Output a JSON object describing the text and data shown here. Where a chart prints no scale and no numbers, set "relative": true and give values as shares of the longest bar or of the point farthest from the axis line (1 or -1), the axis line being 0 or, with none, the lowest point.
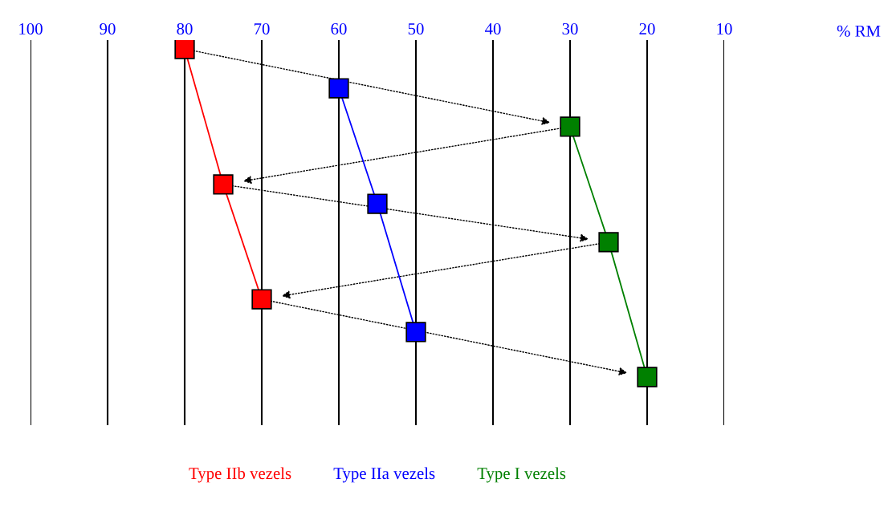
{
  "chart_data": {
    "type": "line",
    "relative": true,
    "annotations": [
      "% RM"
    ],
    "xlim": [
      100,
      10
    ],
    "xticks": [
      100,
      90,
      80,
      70,
      60,
      50,
      40,
      30,
      20,
      10
    ],
    "grid": "x",
    "legend": "bottom",
    "series": [
      {
        "name": "Type IIb vezels",
        "color": "#ff0000",
        "marker": "square",
        "x": [
          80,
          75,
          70
        ],
        "values": [
          1,
          0.587,
          0.237
        ]
      },
      {
        "name": "Type IIa vezels",
        "color": "#0000ff",
        "marker": "square",
        "x": [
          60,
          55,
          50
        ],
        "values": [
          0.88,
          0.528,
          0.137
        ]
      },
      {
        "name": "Type I vezels",
        "color": "#008000",
        "marker": "square",
        "x": [
          30,
          25,
          20
        ],
        "values": [
          0.763,
          0.411,
          0
        ]
      }
    ]
  }
}
